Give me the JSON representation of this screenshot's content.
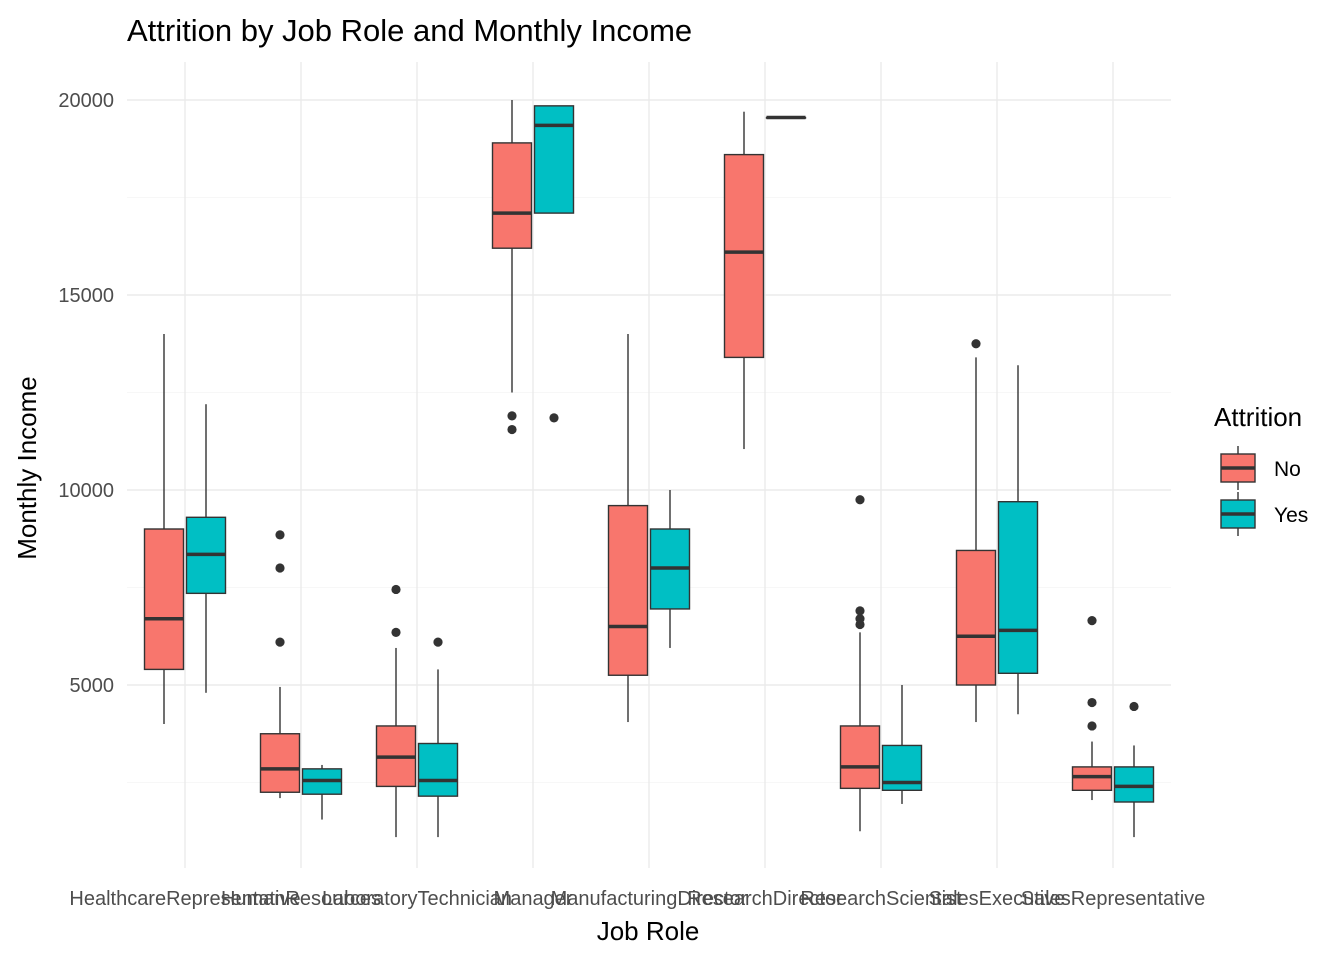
{
  "chart_data": {
    "type": "boxplot",
    "title": "Attrition by Job Role and Monthly Income",
    "xlabel": "Job Role",
    "ylabel": "Monthly Income",
    "ylim": [
      0,
      20600
    ],
    "yticks": [
      5000,
      10000,
      15000,
      20000
    ],
    "legend": {
      "title": "Attrition",
      "position": "right",
      "entries": [
        {
          "name": "No",
          "color": "#F8766D"
        },
        {
          "name": "Yes",
          "color": "#00BFC4"
        }
      ]
    },
    "categories": [
      "HealthcareRepresentative",
      "HumanResources",
      "LaboratoryTechnician",
      "Manager",
      "ManufacturingDirector",
      "ResearchDirector",
      "ResearchScientist",
      "SalesExecutive",
      "SalesRepresentative"
    ],
    "series": [
      {
        "name": "No",
        "color": "#F8766D",
        "boxes": [
          {
            "lower": 4000,
            "q1": 5400,
            "median": 6700,
            "q3": 9000,
            "upper": 14000,
            "outliers": []
          },
          {
            "lower": 2100,
            "q1": 2250,
            "median": 2850,
            "q3": 3750,
            "upper": 4950,
            "outliers": [
              6100,
              8000,
              8850
            ]
          },
          {
            "lower": 1100,
            "q1": 2400,
            "median": 3150,
            "q3": 3950,
            "upper": 5950,
            "outliers": [
              6350,
              7450
            ]
          },
          {
            "lower": 12500,
            "q1": 16200,
            "median": 17100,
            "q3": 18900,
            "upper": 20000,
            "outliers": [
              11550,
              11900
            ]
          },
          {
            "lower": 4050,
            "q1": 5250,
            "median": 6500,
            "q3": 9600,
            "upper": 14000,
            "outliers": []
          },
          {
            "lower": 11050,
            "q1": 13400,
            "median": 16100,
            "q3": 18600,
            "upper": 19700,
            "outliers": []
          },
          {
            "lower": 1250,
            "q1": 2350,
            "median": 2900,
            "q3": 3950,
            "upper": 6350,
            "outliers": [
              6550,
              6700,
              6900,
              9750
            ]
          },
          {
            "lower": 4050,
            "q1": 5000,
            "median": 6250,
            "q3": 8450,
            "upper": 13400,
            "outliers": [
              13750
            ]
          },
          {
            "lower": 2050,
            "q1": 2300,
            "median": 2650,
            "q3": 2900,
            "upper": 3550,
            "outliers": [
              3950,
              4550,
              6650
            ]
          }
        ]
      },
      {
        "name": "Yes",
        "color": "#00BFC4",
        "boxes": [
          {
            "lower": 4800,
            "q1": 7350,
            "median": 8350,
            "q3": 9300,
            "upper": 12200,
            "outliers": []
          },
          {
            "lower": 1550,
            "q1": 2200,
            "median": 2550,
            "q3": 2850,
            "upper": 2950,
            "outliers": []
          },
          {
            "lower": 1100,
            "q1": 2150,
            "median": 2550,
            "q3": 3500,
            "upper": 5400,
            "outliers": [
              6100
            ]
          },
          {
            "lower": 17100,
            "q1": 17100,
            "median": 19350,
            "q3": 19850,
            "upper": 19850,
            "outliers": [
              11850
            ]
          },
          {
            "lower": 5950,
            "q1": 6950,
            "median": 8000,
            "q3": 9000,
            "upper": 10000,
            "outliers": []
          },
          {
            "lower": 19550,
            "q1": 19550,
            "median": 19550,
            "q3": 19550,
            "upper": 19550,
            "outliers": []
          },
          {
            "lower": 1950,
            "q1": 2300,
            "median": 2500,
            "q3": 3450,
            "upper": 5000,
            "outliers": []
          },
          {
            "lower": 4250,
            "q1": 5300,
            "median": 6400,
            "q3": 9700,
            "upper": 13200,
            "outliers": []
          },
          {
            "lower": 1100,
            "q1": 2000,
            "median": 2400,
            "q3": 2900,
            "upper": 3450,
            "outliers": [
              4450
            ]
          }
        ]
      }
    ]
  }
}
